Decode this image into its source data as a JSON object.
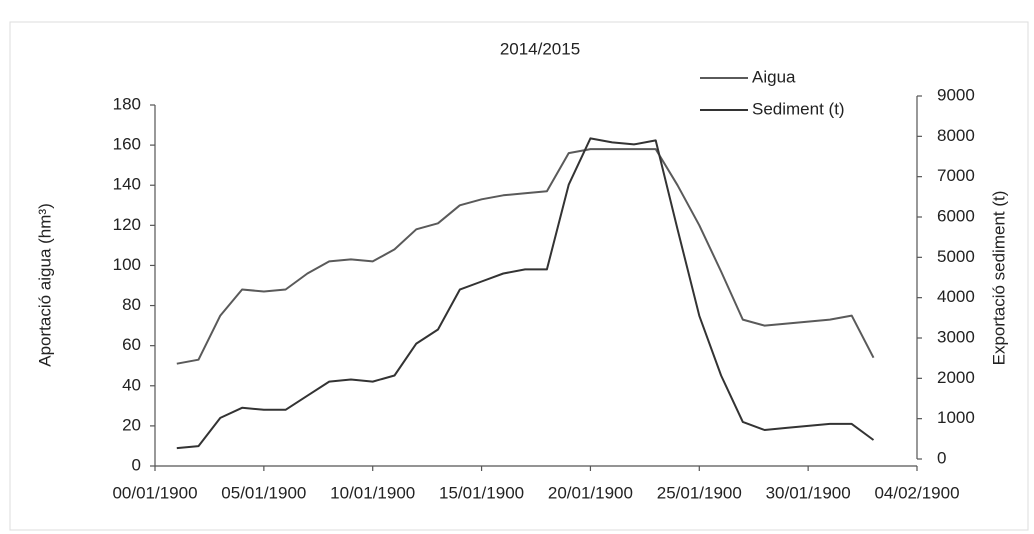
{
  "chart_data": {
    "type": "line",
    "title": "2014/2015",
    "y_label": "Aportació aigua (hm³)",
    "y2_label": "Exportació sediment  (t)",
    "x": [
      1,
      2,
      3,
      4,
      5,
      6,
      7,
      8,
      9,
      10,
      11,
      12,
      13,
      14,
      15,
      16,
      17,
      18,
      19,
      20,
      21,
      22,
      23,
      24,
      25,
      26,
      27,
      28,
      29,
      30,
      31,
      32,
      33
    ],
    "xlim": [
      0,
      35
    ],
    "xticks": [
      {
        "value": 0,
        "label": "00/01/1900"
      },
      {
        "value": 5,
        "label": "05/01/1900"
      },
      {
        "value": 10,
        "label": "10/01/1900"
      },
      {
        "value": 15,
        "label": "15/01/1900"
      },
      {
        "value": 20,
        "label": "20/01/1900"
      },
      {
        "value": 25,
        "label": "25/01/1900"
      },
      {
        "value": 30,
        "label": "30/01/1900"
      },
      {
        "value": 35,
        "label": "04/02/1900"
      }
    ],
    "ylim": [
      0,
      180
    ],
    "yticks": [
      0,
      20,
      40,
      60,
      80,
      100,
      120,
      140,
      160,
      180
    ],
    "y2lim": [
      0,
      9000
    ],
    "y2ticks": [
      0,
      1000,
      2000,
      3000,
      4000,
      5000,
      6000,
      7000,
      8000,
      9000
    ],
    "legend": "top-right",
    "grid": false,
    "series": [
      {
        "name": "Aigua",
        "color": "#5a5a5a",
        "values": [
          51,
          53,
          75,
          88,
          87,
          88,
          96,
          102,
          103,
          102,
          108,
          118,
          121,
          130,
          133,
          135,
          136,
          137,
          156,
          158,
          158,
          158,
          158,
          140,
          120,
          97,
          73,
          70,
          71,
          72,
          73,
          75,
          54
        ]
      },
      {
        "name": "Sediment (t)",
        "color": "#333333",
        "axis": "y2",
        "values": [
          270,
          320,
          1020,
          1270,
          1220,
          1220,
          1570,
          1920,
          1970,
          1920,
          2070,
          2860,
          3210,
          4200,
          4400,
          4600,
          4700,
          4700,
          6800,
          7950,
          7850,
          7800,
          7900,
          5700,
          3550,
          2070,
          920,
          720,
          770,
          820,
          870,
          870,
          470
        ]
      }
    ]
  }
}
